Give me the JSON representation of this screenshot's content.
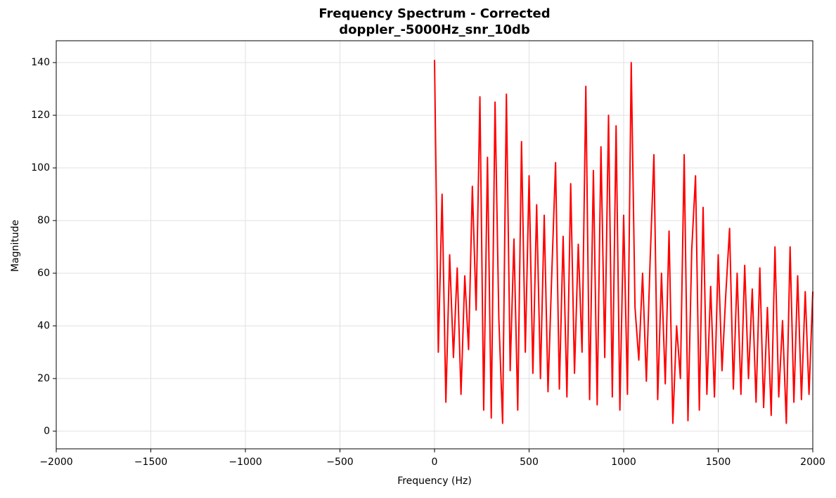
{
  "chart_data": {
    "type": "line",
    "title": "Frequency Spectrum - Corrected",
    "subtitle": "doppler_-5000Hz_snr_10db",
    "x_label": "Frequency (Hz)",
    "y_label": "Magnitude",
    "xlim": [
      -2000,
      2000
    ],
    "ylim": [
      -6.7,
      148.3
    ],
    "xticks": [
      {
        "value": -2000,
        "label": "−2000"
      },
      {
        "value": -1500,
        "label": "−1500"
      },
      {
        "value": -1000,
        "label": "−1000"
      },
      {
        "value": -500,
        "label": "−500"
      },
      0,
      500,
      1000,
      1500,
      2000
    ],
    "yticks": [
      0,
      20,
      40,
      60,
      80,
      100,
      120,
      140
    ],
    "grid": true,
    "x": [
      0,
      20,
      40,
      60,
      80,
      100,
      120,
      140,
      160,
      180,
      200,
      220,
      240,
      260,
      280,
      300,
      320,
      340,
      360,
      380,
      400,
      420,
      440,
      460,
      480,
      500,
      520,
      540,
      560,
      580,
      600,
      620,
      640,
      660,
      680,
      700,
      720,
      740,
      760,
      780,
      800,
      820,
      840,
      860,
      880,
      900,
      920,
      940,
      960,
      980,
      1000,
      1020,
      1040,
      1060,
      1080,
      1100,
      1120,
      1140,
      1160,
      1180,
      1200,
      1220,
      1240,
      1260,
      1280,
      1300,
      1320,
      1340,
      1360,
      1380,
      1400,
      1420,
      1440,
      1460,
      1480,
      1500,
      1520,
      1540,
      1560,
      1580,
      1600,
      1620,
      1640,
      1660,
      1680,
      1700,
      1720,
      1740,
      1760,
      1780,
      1800,
      1820,
      1840,
      1860,
      1880,
      1900,
      1920,
      1940,
      1960,
      1980,
      2000
    ],
    "series": [
      {
        "name": "spectrum",
        "color": "#ff0000",
        "values": [
          141,
          30,
          90,
          11,
          67,
          28,
          62,
          14,
          59,
          31,
          93,
          46,
          127,
          8,
          104,
          5,
          125,
          43,
          3,
          128,
          23,
          73,
          8,
          110,
          30,
          97,
          22,
          86,
          20,
          82,
          15,
          60,
          102,
          16,
          74,
          13,
          94,
          22,
          71,
          30,
          131,
          12,
          99,
          10,
          108,
          28,
          120,
          13,
          116,
          8,
          82,
          14,
          140,
          47,
          27,
          60,
          19,
          65,
          105,
          12,
          60,
          18,
          76,
          3,
          40,
          20,
          105,
          4,
          69,
          97,
          8,
          85,
          14,
          55,
          13,
          67,
          23,
          52,
          77,
          16,
          60,
          14,
          63,
          20,
          54,
          11,
          62,
          9,
          47,
          6,
          70,
          13,
          42,
          3,
          70,
          11,
          59,
          12,
          53,
          14,
          53
        ]
      }
    ]
  }
}
